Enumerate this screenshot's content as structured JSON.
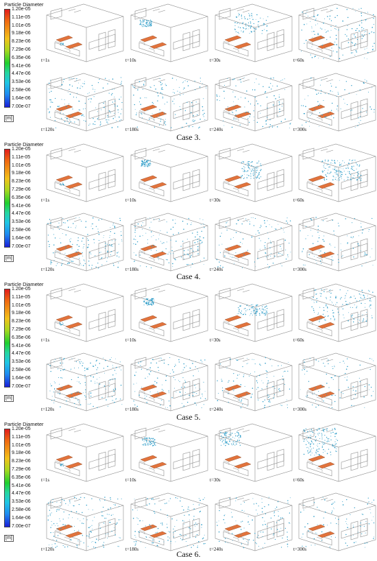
{
  "legend": {
    "title": "Particle Diameter",
    "ticks": [
      "1.20e-05",
      "1.11e-05",
      "1.01e-05",
      "9.18e-06",
      "8.23e-06",
      "7.29e-06",
      "6.35e-06",
      "5.41e-06",
      "4.47e-06",
      "3.53e-06",
      "2.58e-06",
      "1.64e-06",
      "7.00e-07"
    ],
    "unit": "[m]",
    "colors": [
      "#e01c1c",
      "#f06a10",
      "#f2c21a",
      "#a6d81f",
      "#1fcf2e",
      "#25d6a0",
      "#1fc6e3",
      "#1e8bf0",
      "#1a1fd8"
    ]
  },
  "time_labels": [
    "t=1s",
    "t=10s",
    "t=30s",
    "t=60s",
    "t=120s",
    "t=180s",
    "t=240s",
    "t=300s"
  ],
  "cases": [
    {
      "caption": "Case 3."
    },
    {
      "caption": "Case 4."
    },
    {
      "caption": "Case 5."
    },
    {
      "caption": "Case 6."
    }
  ],
  "colors": {
    "outline": "#8a8a8a",
    "bed": "#e2733c",
    "particle": "#2a9bc7"
  }
}
